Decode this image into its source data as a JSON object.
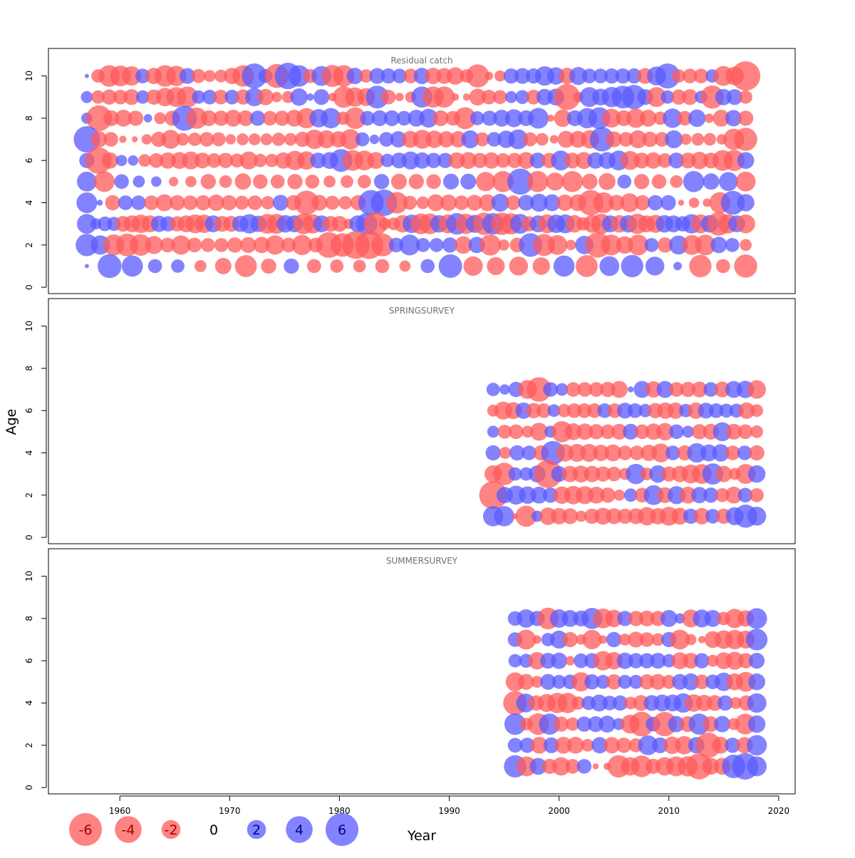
{
  "chart_data": {
    "type": "scatter",
    "subtype": "bubble",
    "xlabel": "Year",
    "ylabel": "Age",
    "xlim": [
      1953.5,
      2021.5
    ],
    "ylim": [
      -0.3,
      11.3
    ],
    "x_ticks": [
      1960,
      1970,
      1980,
      1990,
      2000,
      2010,
      2020
    ],
    "y_ticks": [
      0,
      2,
      4,
      6,
      8,
      10
    ],
    "colors": {
      "negative": "#ff5a5a",
      "positive": "#5a5aff"
    },
    "max_residual": 6,
    "legend": {
      "placement": "bottom-left",
      "values": [
        -6,
        -4,
        -2,
        0,
        2,
        4,
        6
      ],
      "labels": [
        "-6",
        "-4",
        "-2",
        "0",
        "2",
        "4",
        "6"
      ]
    },
    "panels": [
      {
        "title": "Residual catch",
        "years": [
          1957,
          2017
        ],
        "ages": [
          1,
          10
        ],
        "rows": {
          "10": [
            0.1,
            -1,
            -2.6,
            -2.4,
            -2.1,
            1.2,
            -1.5,
            -2.6,
            -2.3,
            1.4,
            -1.1,
            -0.8,
            -0.9,
            -1.5,
            -2.6,
            3.5,
            1.1,
            -3.2,
            3.9,
            2.6,
            -1.1,
            2.2,
            -2.7,
            -2.6,
            1.5,
            -1,
            1.4,
            1.3,
            1.2,
            -1.2,
            1.5,
            -1.5,
            -1.4,
            -1.7,
            -1,
            -3,
            -0.4,
            -0.7,
            1.3,
            1.4,
            1.3,
            2.1,
            1.7,
            -1.5,
            1.8,
            1.2,
            1.2,
            1.3,
            1.3,
            1.3,
            -1.4,
            2,
            3.5,
            -1,
            -1.2,
            -1.2,
            1,
            -2.2,
            -1.9,
            -4.8
          ],
          "9": [
            0.8,
            -1,
            -1.3,
            -1.2,
            -1.4,
            1,
            -1.3,
            -1.9,
            -2.2,
            -2.5,
            1,
            1.2,
            -1.2,
            1.2,
            -1.3,
            1.9,
            -1.5,
            -0.6,
            -0.8,
            1.7,
            0.3,
            1.4,
            -0.4,
            -2.6,
            -2.1,
            -1.8,
            2.9,
            -1.2,
            -0.4,
            -0.7,
            2.5,
            -2.5,
            -2.5,
            -0.3,
            -0.3,
            -1.6,
            -1.2,
            -1.1,
            0.8,
            1.1,
            -1.2,
            1.5,
            1.6,
            -3.8,
            -0.6,
            2.2,
            1.6,
            2.3,
            2.9,
            3.3,
            1.4,
            -2.2,
            1,
            -1.3,
            -1.4,
            0.9,
            -3,
            1.5,
            1.4,
            -1
          ],
          "8": [
            0.7,
            -3.7,
            -1.4,
            -1.6,
            -1.3,
            0.4,
            -0.8,
            -1.3,
            3.5,
            -2.5,
            -1.4,
            -1.3,
            -1.6,
            -1.4,
            1.3,
            -1.2,
            -1.3,
            -1.6,
            -2.3,
            1.9,
            2.3,
            -1,
            -2.6,
            1.2,
            1.4,
            1.4,
            1.2,
            1.6,
            2,
            -1.4,
            -1.2,
            -2.7,
            1.1,
            1.3,
            1.6,
            1.8,
            1.4,
            2.4,
            -0.3,
            -1.7,
            1.4,
            2.3,
            2.7,
            -2,
            -1.4,
            -2.1,
            -1.6,
            -1,
            2.1,
            -1.2,
            1.7,
            -0.5,
            -1.6,
            1.5,
            -1.3
          ],
          "7": [
            3.9,
            -1.5,
            -1.2,
            -0.3,
            -0.2,
            -0.6,
            -1.3,
            -2,
            -0.9,
            -1,
            -1.2,
            -1.1,
            -0.6,
            -0.8,
            -0.8,
            -0.8,
            -1,
            -0.9,
            -1.3,
            -2.1,
            -1.8,
            -1.5,
            -2.3,
            1.1,
            0.5,
            1.2,
            1.5,
            -1.6,
            -2,
            -1.7,
            -1.5,
            -1.5,
            1.8,
            -1.1,
            1.2,
            1.7,
            2.2,
            -1.1,
            -0.9,
            -0.4,
            -1.6,
            -1.6,
            -1.9,
            3.3,
            -1.4,
            -1.2,
            -1.8,
            -1.3,
            -1.2,
            1.8,
            -0.7,
            -0.9,
            -0.9,
            -0.6,
            -2.5,
            -3
          ],
          "6": [
            1.3,
            -3.9,
            -1.5,
            0.7,
            0.6,
            -0.9,
            -1.2,
            -1.5,
            -1.6,
            -1.8,
            -1.4,
            -1.2,
            -1.3,
            -1.1,
            -1.8,
            -1,
            -1,
            -1.5,
            -2.1,
            -1.9,
            1.4,
            1.6,
            2.9,
            -2.4,
            -2.2,
            -1.6,
            1,
            1.4,
            1.8,
            1.5,
            1.3,
            1.3,
            -1.5,
            -1.6,
            -1.3,
            -1.5,
            -1.2,
            -1.3,
            -1.6,
            1.4,
            -1.3,
            2.2,
            -1.4,
            -1.6,
            1.5,
            1.6,
            2.2,
            -2,
            -1.4,
            -1.5,
            -1.2,
            1.4,
            -1.4,
            -1.7,
            -1.4,
            -2.4,
            -2.5,
            1.6
          ],
          "5": [
            2.2,
            -2.4,
            1.2,
            0.8,
            0.6,
            -0.5,
            -0.7,
            -1.3,
            -0.9,
            -1.5,
            -1.2,
            -1.1,
            -1.3,
            -1.1,
            -0.8,
            -0.9,
            -1,
            1.3,
            -1.4,
            -1.3,
            -1.2,
            1.4,
            1.4,
            -2.1,
            -2.5,
            3.8,
            -2.5,
            -1.8,
            -2.5,
            -1.4,
            -1.6,
            1.1,
            -1.3,
            -1.2,
            -0.9,
            2.5,
            1.5,
            2,
            -2.2
          ],
          "4": [
            2.4,
            0.2,
            -1.3,
            1.2,
            1.2,
            -1.2,
            -1.6,
            -1.3,
            -1.2,
            -1.3,
            -1.5,
            -1.3,
            -1.1,
            -1.2,
            -1,
            1.4,
            -1.3,
            -3.3,
            -1.4,
            -1.1,
            -1,
            -1.3,
            3.6,
            3.9,
            -2.6,
            -1.1,
            -0.9,
            -1.6,
            -1.5,
            -1.2,
            -1.4,
            -1.6,
            1.8,
            -1.2,
            1.4,
            1.8,
            1.6,
            -1.5,
            -1.6,
            -3.6,
            -2.4,
            -1.4,
            -2,
            -1.3,
            1.3,
            1.3,
            -0.2,
            -0.6,
            -0.4,
            -2.5,
            3.2,
            1.7
          ],
          "3": [
            2.2,
            0.7,
            1.2,
            1.1,
            -1.4,
            -1.6,
            -1.9,
            -1.6,
            1.5,
            1.3,
            -1.3,
            -1.6,
            -2,
            -1.9,
            1.6,
            -1.4,
            -1.4,
            1.5,
            2.1,
            1.5,
            -2.2,
            -2.2,
            1.7,
            1.6,
            -2.4,
            -2.1,
            1.6,
            -1.4,
            -1.4,
            -0.6,
            1.6,
            2.6,
            -3.1,
            -0.8,
            -0.9,
            -1.7,
            1.9,
            -2.4,
            -2.4,
            1.7,
            -2,
            2.6,
            -2.3,
            1.8,
            -2.8,
            2.6,
            -2.8,
            -2.5,
            2.2,
            -1.3,
            1.6,
            -2,
            1.9,
            2,
            -1.7,
            -1,
            -1.8,
            -2.3,
            1.6,
            -1.7,
            1.7,
            -2.3,
            -1.6,
            -1.8,
            1.7,
            1.6,
            1.3,
            2.1,
            -2,
            1.7,
            -3.1,
            -2.1,
            1.6,
            -2
          ],
          "2": [
            2.8,
            2.1,
            -2.5,
            -2.9,
            -2.6,
            -1.8,
            -1.2,
            -2.1,
            -1.2,
            -1.1,
            -1.1,
            -1.3,
            -1.4,
            -1.5,
            -2.1,
            -1.2,
            -2.3,
            -1.2,
            -3.7,
            -3.1,
            -4.3,
            -4.4,
            -2.9,
            1.2,
            2.4,
            1.1,
            1.1,
            1.3,
            -1.7,
            1.5,
            -2.5,
            -0.7,
            -1.2,
            3.1,
            -2.7,
            -2.2,
            -0.6,
            1.9,
            -3.6,
            -2.4,
            -1.7,
            -2.4,
            1.1,
            -1.3,
            2,
            -2.2,
            -2.4,
            1.5,
            1.1,
            -0.8
          ],
          "1": [
            0.1,
            3.2,
            2.5,
            1.1,
            1,
            -0.8,
            -1.5,
            -2.7,
            -1.3,
            1.3,
            -1.1,
            -1,
            -0.9,
            -1.1,
            -0.7,
            1.1,
            3.1,
            -2.1,
            -1.8,
            -2,
            -1.7,
            2.5,
            -2.7,
            2.2,
            2.8,
            2,
            0.4,
            -2.8,
            -1.1,
            -3
          ]
        }
      },
      {
        "title": "SPRINGSURVEY",
        "years": [
          1994,
          2018
        ],
        "ages": [
          1,
          7
        ],
        "rows": {
          "7": [
            1,
            0.6,
            1.3,
            -2,
            -3.4,
            1.2,
            0.9,
            -1.2,
            -1.2,
            -1.2,
            -1.3,
            -1.6,
            0.2,
            1.6,
            -1.5,
            1.6,
            -1.2,
            -1.3,
            -1.4,
            1.2,
            -1.4,
            1.6,
            1.7,
            -1.9
          ],
          "6": [
            -0.8,
            -1.8,
            -1.6,
            1.5,
            -1.3,
            -1.2,
            0.9,
            -1,
            -1.2,
            -1.2,
            -1.2,
            1.2,
            -1.2,
            1.4,
            1.2,
            1,
            -1.3,
            -1.5,
            -1.5,
            1,
            -1.5,
            1.4,
            1.2,
            1.1,
            1.1,
            -1.5,
            -0.9
          ],
          "5": [
            0.8,
            -1.1,
            -1.2,
            -0.8,
            -1.8,
            0.8,
            -2.5,
            -1.6,
            -1.5,
            -1.3,
            -1.2,
            -1.4,
            1.4,
            -1.2,
            -1.5,
            -1.7,
            1.2,
            0.8,
            -1.3,
            -1.4,
            2,
            -1.4,
            -1.2,
            -0.9
          ],
          "4": [
            1.3,
            -0.8,
            1.3,
            1.2,
            -1.3,
            3.2,
            -1.7,
            -1.8,
            -1.8,
            -1.5,
            -1.6,
            -1.2,
            -1.2,
            -1.5,
            -2,
            1.2,
            -1.3,
            2.1,
            1.6,
            1.7,
            -1.2,
            1.2,
            -1.3
          ],
          "3": [
            -1.7,
            -2.8,
            1,
            1,
            1.6,
            -4.4,
            1.4,
            -1.5,
            -1.6,
            -1.5,
            -1.3,
            -1.2,
            -0.8,
            2.3,
            -0.9,
            1.7,
            -1.3,
            -1.5,
            -2,
            -2.2,
            2.5,
            -1.5,
            -0.8,
            -2.2,
            1.7
          ],
          "2": [
            -4.4,
            1.5,
            2,
            1.7,
            1.6,
            1.3,
            -1.7,
            -1.9,
            -1.8,
            -1.6,
            -1.3,
            -0.7,
            1,
            -1.2,
            2.2,
            -1.4,
            1.8,
            -1.6,
            1.5,
            1.3,
            -1.1,
            -1.6,
            1.2,
            -1.1
          ],
          "1": [
            2.3,
            2.3,
            -0.2,
            -2.5,
            0.7,
            -1.7,
            -1.5,
            -1.4,
            -0.7,
            -1.3,
            -1.6,
            -1.4,
            -1.3,
            -1.4,
            -1.9,
            -1.5,
            -2,
            -1.6,
            1.3,
            -1.5,
            1.2,
            -1.3,
            1.8,
            3,
            2
          ]
        }
      },
      {
        "title": "SUMMERSURVEY",
        "years": [
          1996,
          2018
        ],
        "ages": [
          1,
          8
        ],
        "rows": {
          "8": [
            1.2,
            1.9,
            1.3,
            -2.6,
            1.9,
            1.6,
            1.4,
            2.5,
            -2.2,
            -1.7,
            1.3,
            -1.3,
            -1.4,
            -1.3,
            1.6,
            0.6,
            -1.8,
            1.8,
            1.6,
            -1,
            -2.1,
            -1.5,
            2.4
          ],
          "7": [
            1.2,
            -2.2,
            -0.4,
            1,
            1.8,
            -1.3,
            -0.6,
            -2.1,
            -0.4,
            1.3,
            -0.8,
            -1.4,
            -1.2,
            -0.9,
            1.3,
            -2.2,
            -0.7,
            -0.3,
            -1.6,
            -1.9,
            -2.1,
            -1.8,
            2.6
          ],
          "6": [
            1,
            1.1,
            -1.7,
            1.4,
            1.5,
            -0.5,
            1.2,
            1.3,
            -2.1,
            -1.7,
            1.5,
            1.3,
            1.3,
            1.4,
            1,
            -1.6,
            -1.4,
            1.3,
            -0.8,
            -1.6,
            -1.8,
            -1.3,
            1.4
          ],
          "5": [
            -2,
            -1.4,
            -0.8,
            1.4,
            1.1,
            1.2,
            -2.1,
            1.3,
            1.1,
            -1.3,
            1.1,
            1.1,
            -1.3,
            -1.4,
            -1.1,
            1.4,
            1.6,
            -1.2,
            1.2,
            1.9,
            -1.6,
            -2.2,
            1.6
          ],
          "4": [
            -3.2,
            2,
            -1.3,
            -1.8,
            -2.3,
            -2.3,
            -1,
            1.1,
            1.6,
            1.2,
            1.3,
            -0.9,
            -1.4,
            1.4,
            1.6,
            1.6,
            2.1,
            -1.7,
            -1.5,
            -1.4,
            1.3,
            -0.8,
            -1.3,
            2.1
          ],
          "3": [
            2.6,
            -0.9,
            -2.6,
            2.5,
            -1.3,
            -1,
            1.3,
            1.4,
            1.6,
            0.8,
            -2,
            -3.4,
            1.2,
            -3.3,
            1.5,
            -1.4,
            2.5,
            -1.4,
            1.5,
            -0.8,
            -2.4,
            1.7
          ],
          "2": [
            1.2,
            1.3,
            -1.6,
            1.4,
            -1.6,
            -1.6,
            -0.9,
            1.5,
            -1.5,
            -1.3,
            -1.1,
            2.2,
            1.4,
            -1.7,
            -1.9,
            1.5,
            -3.6,
            -1.6,
            1.3,
            -1.5,
            2.3
          ],
          "1": [
            2.8,
            -2.2,
            1.6,
            -1.3,
            -1.9,
            -1.2,
            1.2,
            -0.2,
            -0.3,
            -2.8,
            -1.9,
            -2.6,
            -1.3,
            -1.9,
            -2.2,
            -2.3,
            -3.8,
            -1.6,
            -1.6,
            3.1,
            3.9,
            2.2
          ]
        }
      }
    ]
  }
}
